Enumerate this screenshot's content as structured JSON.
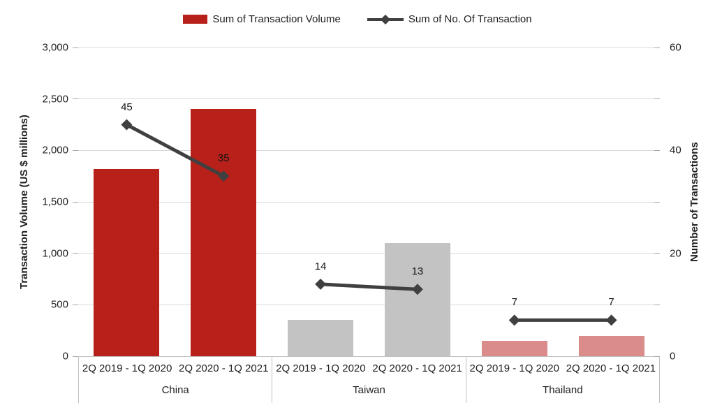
{
  "chart_data": {
    "type": "bar",
    "secondary_type": "line",
    "title": "",
    "legend_position": "top",
    "grid": true,
    "group_labels": [
      "China",
      "Taiwan",
      "Thailand"
    ],
    "period_labels": [
      "2Q 2019 - 1Q 2020",
      "2Q 2020 - 1Q 2021"
    ],
    "series": [
      {
        "name": "Sum of Transaction Volume",
        "type": "bar",
        "axis": "left",
        "values": [
          1820,
          2400,
          355,
          1100,
          150,
          200
        ]
      },
      {
        "name": "Sum of No. Of Transaction",
        "type": "line",
        "axis": "right",
        "values": [
          45,
          35,
          14,
          13,
          7,
          7
        ],
        "data_labels": [
          "45",
          "35",
          "14",
          "13",
          "7",
          "7"
        ]
      }
    ],
    "left_axis": {
      "label": "Transaction Volume (US $ millions)",
      "range": [
        0,
        3000
      ],
      "tick_step": 500,
      "tick_labels": [
        "0",
        "500",
        "1,000",
        "1,500",
        "2,000",
        "2,500",
        "3,000"
      ]
    },
    "right_axis": {
      "label": "Number of Transactions",
      "range": [
        0,
        60
      ],
      "tick_step": 10,
      "tick_labels": [
        "0",
        "",
        "20",
        "",
        "40",
        "",
        "60"
      ]
    },
    "colors": {
      "bar_by_group": [
        "#B7211A",
        "#C3C3C3",
        "#D98C89"
      ],
      "line": "#404040",
      "gridline": "#D9D9D9",
      "axis_box_border": "#BFBFBF",
      "tick_mark": "#A6A6A6",
      "text": "#1F1F1F"
    }
  }
}
